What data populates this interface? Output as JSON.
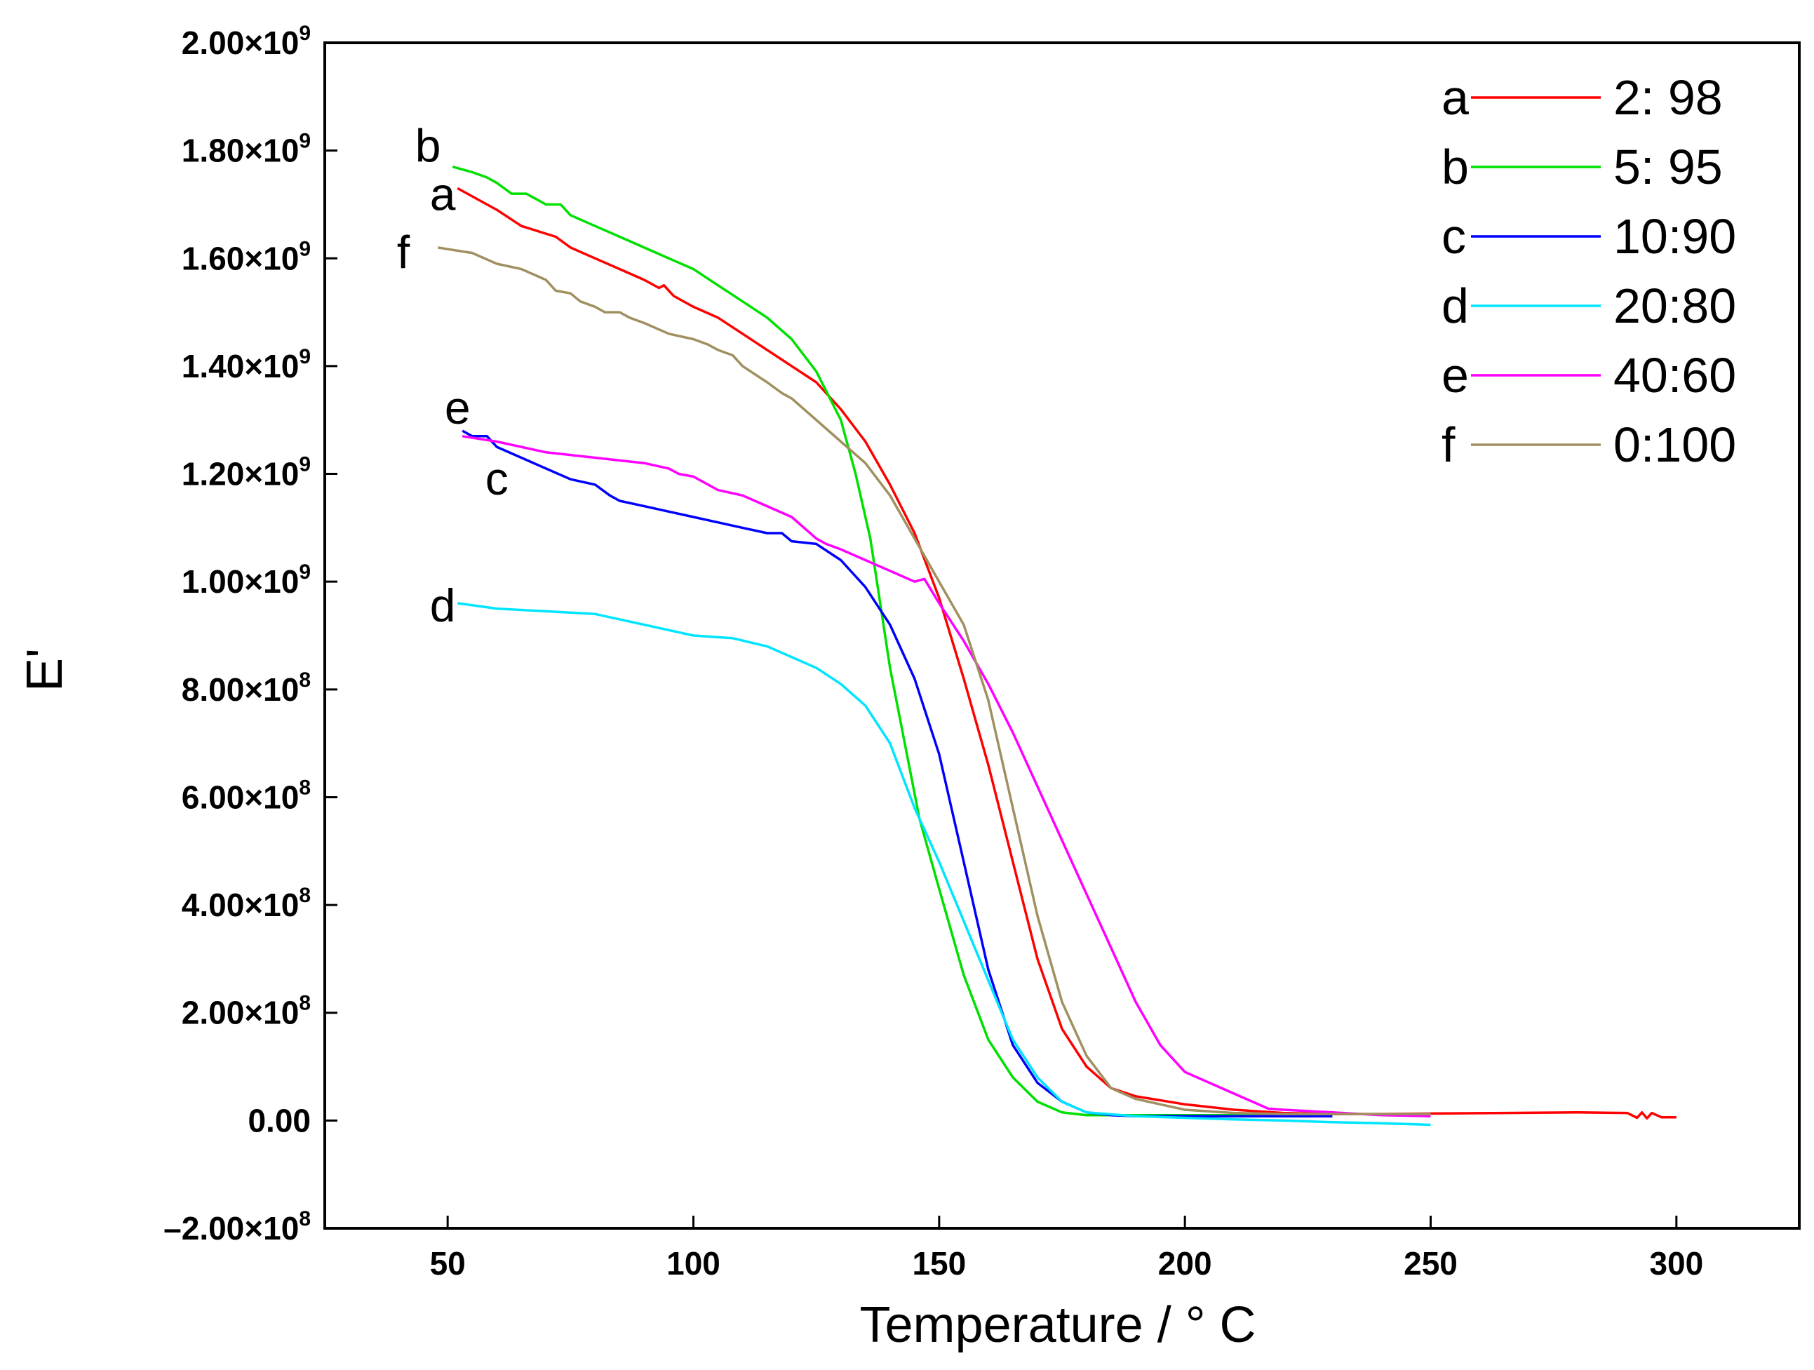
{
  "chart_data": {
    "type": "line",
    "title": "",
    "xlabel": "Temperature / ° C",
    "ylabel": "E'",
    "xlim": [
      25,
      325
    ],
    "ylim": [
      -200000000,
      2000000000
    ],
    "xticks": [
      50,
      100,
      150,
      200,
      250,
      300
    ],
    "xtick_labels": [
      "50",
      "100",
      "150",
      "200",
      "250",
      "300"
    ],
    "yticks": [
      {
        "value": 2000000000,
        "mantissa": "2.00",
        "exp": "9",
        "sign": ""
      },
      {
        "value": 1800000000,
        "mantissa": "1.80",
        "exp": "9",
        "sign": ""
      },
      {
        "value": 1600000000,
        "mantissa": "1.60",
        "exp": "9",
        "sign": ""
      },
      {
        "value": 1400000000,
        "mantissa": "1.40",
        "exp": "9",
        "sign": ""
      },
      {
        "value": 1200000000,
        "mantissa": "1.20",
        "exp": "9",
        "sign": ""
      },
      {
        "value": 1000000000,
        "mantissa": "1.00",
        "exp": "9",
        "sign": ""
      },
      {
        "value": 800000000,
        "mantissa": "8.00",
        "exp": "8",
        "sign": ""
      },
      {
        "value": 600000000,
        "mantissa": "6.00",
        "exp": "8",
        "sign": ""
      },
      {
        "value": 400000000,
        "mantissa": "4.00",
        "exp": "8",
        "sign": ""
      },
      {
        "value": 200000000,
        "mantissa": "2.00",
        "exp": "8",
        "sign": ""
      },
      {
        "value": 0,
        "mantissa": "0.00",
        "exp": "",
        "sign": ""
      },
      {
        "value": -200000000,
        "mantissa": "2.00",
        "exp": "8",
        "sign": "–"
      }
    ],
    "grid": false,
    "legend_position": "top-right",
    "series": [
      {
        "name": "2: 98",
        "letter": "a",
        "color": "#ff0000",
        "x": [
          52,
          60,
          65,
          72,
          75,
          80,
          85,
          90,
          93,
          94,
          95,
          96,
          100,
          105,
          110,
          115,
          120,
          125,
          130,
          135,
          140,
          145,
          150,
          155,
          160,
          165,
          170,
          175,
          180,
          185,
          190,
          200,
          210,
          220,
          230,
          240,
          250,
          265,
          280,
          290,
          292,
          293,
          294,
          295,
          297,
          300
        ],
        "y": [
          1730000000,
          1690000000,
          1660000000,
          1640000000,
          1620000000,
          1600000000,
          1580000000,
          1560000000,
          1545000000,
          1550000000,
          1540000000,
          1530000000,
          1510000000,
          1490000000,
          1460000000,
          1430000000,
          1400000000,
          1370000000,
          1320000000,
          1260000000,
          1180000000,
          1090000000,
          970000000,
          820000000,
          660000000,
          480000000,
          300000000,
          170000000,
          100000000,
          60000000,
          45000000,
          30000000,
          20000000,
          14000000,
          12000000,
          12000000,
          13000000,
          14000000,
          15000000,
          14000000,
          5000000,
          15000000,
          4000000,
          14000000,
          6000000,
          6000000
        ],
        "label_pos": [
          49,
          1718000000
        ]
      },
      {
        "name": "5: 95",
        "letter": "b",
        "color": "#00e000",
        "x": [
          51,
          55,
          58,
          60,
          63,
          66,
          70,
          73,
          75,
          80,
          85,
          90,
          95,
          100,
          105,
          110,
          115,
          120,
          125,
          130,
          133,
          136,
          138,
          140,
          143,
          146,
          150,
          155,
          160,
          165,
          170,
          175,
          180,
          200,
          230
        ],
        "y": [
          1770000000,
          1760000000,
          1750000000,
          1740000000,
          1720000000,
          1720000000,
          1700000000,
          1700000000,
          1680000000,
          1660000000,
          1640000000,
          1620000000,
          1600000000,
          1580000000,
          1550000000,
          1520000000,
          1490000000,
          1450000000,
          1390000000,
          1300000000,
          1200000000,
          1080000000,
          960000000,
          840000000,
          700000000,
          560000000,
          430000000,
          270000000,
          150000000,
          80000000,
          35000000,
          15000000,
          10000000,
          10000000,
          10000000
        ],
        "label_pos": [
          46,
          1808000000
        ]
      },
      {
        "name": "10:90",
        "letter": "c",
        "color": "#0000ff",
        "x": [
          53,
          55,
          58,
          60,
          65,
          70,
          75,
          80,
          83,
          85,
          90,
          95,
          100,
          105,
          110,
          115,
          118,
          120,
          125,
          130,
          135,
          140,
          145,
          150,
          155,
          160,
          165,
          170,
          175,
          180,
          185,
          190,
          200,
          210,
          220,
          230
        ],
        "y": [
          1280000000,
          1270000000,
          1270000000,
          1250000000,
          1230000000,
          1210000000,
          1190000000,
          1180000000,
          1160000000,
          1150000000,
          1140000000,
          1130000000,
          1120000000,
          1110000000,
          1100000000,
          1090000000,
          1090000000,
          1075000000,
          1070000000,
          1040000000,
          990000000,
          920000000,
          820000000,
          680000000,
          480000000,
          280000000,
          140000000,
          70000000,
          35000000,
          15000000,
          10000000,
          8000000,
          8000000,
          8000000,
          8000000,
          8000000
        ],
        "label_pos": [
          60,
          1190000000
        ]
      },
      {
        "name": "20:80",
        "letter": "d",
        "color": "#00e5ff",
        "x": [
          52,
          60,
          70,
          80,
          90,
          100,
          108,
          115,
          120,
          125,
          130,
          135,
          140,
          145,
          150,
          155,
          160,
          165,
          170,
          175,
          180,
          190,
          200,
          210,
          220,
          230,
          240,
          250
        ],
        "y": [
          960000000,
          950000000,
          945000000,
          940000000,
          920000000,
          900000000,
          895000000,
          880000000,
          860000000,
          840000000,
          810000000,
          770000000,
          700000000,
          580000000,
          480000000,
          370000000,
          260000000,
          150000000,
          80000000,
          35000000,
          15000000,
          8000000,
          5000000,
          2000000,
          0,
          -3000000,
          -5000000,
          -8000000
        ],
        "label_pos": [
          49,
          955000000
        ]
      },
      {
        "name": "40:60",
        "letter": "e",
        "color": "#ff00ff",
        "x": [
          53,
          60,
          70,
          80,
          90,
          95,
          97,
          100,
          103,
          105,
          110,
          115,
          120,
          125,
          127,
          130,
          135,
          140,
          145,
          147,
          150,
          155,
          160,
          165,
          170,
          175,
          180,
          185,
          190,
          195,
          200,
          210,
          217,
          220,
          230,
          240,
          250
        ],
        "y": [
          1270000000,
          1260000000,
          1240000000,
          1230000000,
          1220000000,
          1210000000,
          1200000000,
          1195000000,
          1180000000,
          1170000000,
          1160000000,
          1140000000,
          1120000000,
          1080000000,
          1070000000,
          1060000000,
          1040000000,
          1020000000,
          1000000000,
          1005000000,
          960000000,
          890000000,
          810000000,
          720000000,
          620000000,
          520000000,
          420000000,
          320000000,
          220000000,
          140000000,
          90000000,
          50000000,
          22000000,
          20000000,
          15000000,
          10000000,
          8000000
        ],
        "label_pos": [
          52,
          1322000000
        ]
      },
      {
        "name": "0:100",
        "letter": "f",
        "color": "#a09060",
        "x": [
          48,
          55,
          60,
          65,
          70,
          72,
          75,
          77,
          80,
          82,
          85,
          87,
          90,
          95,
          100,
          103,
          105,
          108,
          110,
          115,
          118,
          120,
          125,
          130,
          135,
          140,
          145,
          150,
          155,
          160,
          165,
          170,
          175,
          180,
          185,
          190,
          200,
          210,
          220,
          230,
          240,
          250
        ],
        "y": [
          1620000000,
          1610000000,
          1590000000,
          1580000000,
          1560000000,
          1540000000,
          1535000000,
          1520000000,
          1510000000,
          1500000000,
          1500000000,
          1490000000,
          1480000000,
          1460000000,
          1450000000,
          1440000000,
          1430000000,
          1420000000,
          1400000000,
          1370000000,
          1350000000,
          1340000000,
          1300000000,
          1260000000,
          1220000000,
          1160000000,
          1080000000,
          1000000000,
          920000000,
          780000000,
          580000000,
          380000000,
          220000000,
          120000000,
          60000000,
          40000000,
          20000000,
          14000000,
          12000000,
          12000000,
          12000000,
          12000000
        ],
        "label_pos": [
          41,
          1610000000
        ]
      }
    ]
  }
}
